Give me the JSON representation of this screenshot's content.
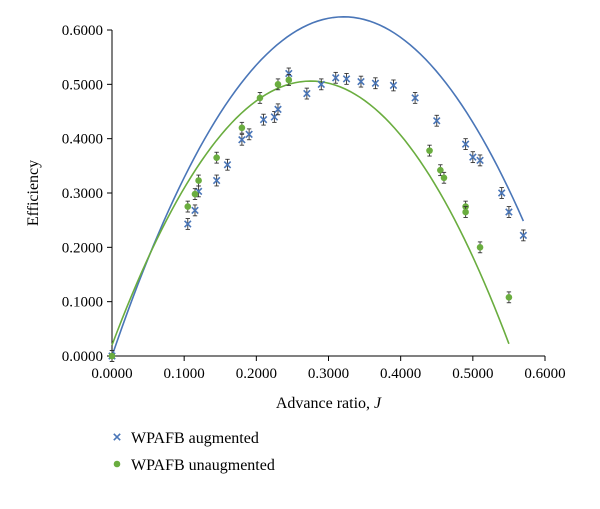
{
  "chart_data": {
    "type": "scatter",
    "title": "",
    "xlabel": "Advance ratio,",
    "xlabel_italic": "J",
    "ylabel": "Efficiency",
    "xlim": [
      0,
      0.6
    ],
    "ylim": [
      0,
      0.6
    ],
    "xticks": [
      "0.0000",
      "0.1000",
      "0.2000",
      "0.3000",
      "0.4000",
      "0.5000",
      "0.6000"
    ],
    "yticks": [
      "0.0000",
      "0.1000",
      "0.2000",
      "0.3000",
      "0.4000",
      "0.5000",
      "0.6000"
    ],
    "grid": false,
    "legend_position": "bottom-left",
    "series": [
      {
        "name": "WPAFB augmented",
        "marker": "x",
        "color": "#4a76b8",
        "error": 0.01,
        "x": [
          0.0,
          0.105,
          0.115,
          0.12,
          0.145,
          0.16,
          0.18,
          0.19,
          0.21,
          0.225,
          0.23,
          0.245,
          0.27,
          0.29,
          0.31,
          0.325,
          0.345,
          0.365,
          0.39,
          0.42,
          0.45,
          0.49,
          0.5,
          0.51,
          0.54,
          0.55,
          0.57
        ],
        "y": [
          0.0,
          0.243,
          0.268,
          0.303,
          0.323,
          0.352,
          0.398,
          0.408,
          0.435,
          0.44,
          0.454,
          0.52,
          0.483,
          0.5,
          0.512,
          0.51,
          0.505,
          0.502,
          0.498,
          0.475,
          0.433,
          0.39,
          0.366,
          0.36,
          0.3,
          0.265,
          0.222
        ],
        "fit": [
          -6.06,
          3.89,
          0
        ]
      },
      {
        "name": "WPAFB unaugmented",
        "marker": "dot",
        "color": "#6aad3f",
        "error": 0.01,
        "x": [
          0.0,
          0.105,
          0.115,
          0.12,
          0.145,
          0.18,
          0.205,
          0.23,
          0.245,
          0.44,
          0.455,
          0.46,
          0.49,
          0.49,
          0.51,
          0.55
        ],
        "y": [
          0.0,
          0.275,
          0.298,
          0.323,
          0.365,
          0.42,
          0.475,
          0.5,
          0.508,
          0.378,
          0.342,
          0.328,
          0.275,
          0.265,
          0.2,
          0.108
        ],
        "fit": [
          -6.41,
          3.53,
          0.02
        ]
      }
    ]
  }
}
